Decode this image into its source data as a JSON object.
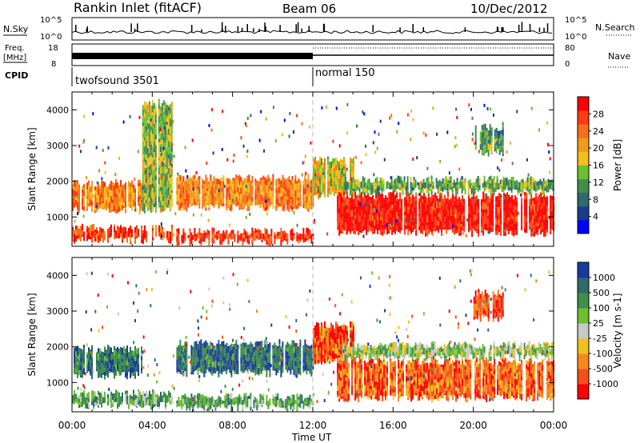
{
  "header": {
    "station": "Rankin Inlet (fitACF)",
    "beam": "Beam 06",
    "date": "10/Dec/2012"
  },
  "top_panels": {
    "nsky_label": "N.Sky",
    "nsearch_label": "N.Search",
    "nsky_ticks": [
      "10^5",
      "10^0"
    ],
    "nsearch_ticks": [
      "10^5",
      "10^0"
    ],
    "freq_label": [
      "Freq.",
      "[MHz]"
    ],
    "freq_ticks": [
      "18",
      "8"
    ],
    "nave_label": "Nave",
    "nave_ticks": [
      "80",
      "0"
    ],
    "cpid_label": "CPID",
    "cpid_segments": [
      {
        "start": 0,
        "end": 12,
        "label": "twofsound 3501"
      },
      {
        "start": 12,
        "end": 24,
        "label": "normal 150"
      }
    ]
  },
  "chart_data": [
    {
      "type": "heatmap",
      "title": "",
      "xlabel": "Time UT",
      "ylabel": "Slant Range [km]",
      "xlim": [
        0,
        24
      ],
      "ylim": [
        180,
        4500
      ],
      "x_ticks": [
        "00:00",
        "04:00",
        "08:00",
        "12:00",
        "16:00",
        "20:00",
        "00:00"
      ],
      "y_ticks": [
        1000,
        2000,
        3000,
        4000
      ],
      "colorbar": {
        "label": "Power [dB]",
        "ticks": [
          "4",
          "8",
          "12",
          "16",
          "20",
          "24",
          "28"
        ],
        "colors": [
          "#0000ff",
          "#1a3a8f",
          "#2e6b6b",
          "#3e8f4a",
          "#6cbf2f",
          "#f2c01a",
          "#f29a1a",
          "#f5701a",
          "#ff3b10",
          "#ff0000"
        ]
      },
      "bands": [
        {
          "t_start": 0.0,
          "t_end": 3.5,
          "r_min": 1200,
          "r_max": 1950,
          "level": 0.72
        },
        {
          "t_start": 0.0,
          "t_end": 5.0,
          "r_min": 350,
          "r_max": 700,
          "level": 0.85
        },
        {
          "t_start": 5.2,
          "t_end": 12.0,
          "r_min": 1250,
          "r_max": 2100,
          "level": 0.7
        },
        {
          "t_start": 5.2,
          "t_end": 12.0,
          "r_min": 300,
          "r_max": 600,
          "level": 0.88
        },
        {
          "t_start": 12.0,
          "t_end": 14.0,
          "r_min": 1600,
          "r_max": 2600,
          "level": 0.55
        },
        {
          "t_start": 13.2,
          "t_end": 24.0,
          "r_min": 550,
          "r_max": 1600,
          "level": 0.95
        },
        {
          "t_start": 13.5,
          "t_end": 24.0,
          "r_min": 1700,
          "r_max": 2050,
          "level": 0.4
        },
        {
          "t_start": 3.5,
          "t_end": 5.0,
          "r_min": 1200,
          "r_max": 4200,
          "level": 0.45
        },
        {
          "t_start": 20.0,
          "t_end": 21.5,
          "r_min": 2800,
          "r_max": 3500,
          "level": 0.35
        }
      ]
    },
    {
      "type": "heatmap",
      "title": "",
      "xlabel": "Time UT",
      "ylabel": "Slant Range [km]",
      "xlim": [
        0,
        24
      ],
      "ylim": [
        180,
        4500
      ],
      "x_ticks": [
        "00:00",
        "04:00",
        "08:00",
        "12:00",
        "16:00",
        "20:00",
        "00:00"
      ],
      "y_ticks": [
        1000,
        2000,
        3000,
        4000
      ],
      "colorbar": {
        "label": "Velocity [m s-1]",
        "ticks": [
          "1000",
          "500",
          "100",
          "25",
          "-25",
          "-100",
          "-500",
          "-1000"
        ],
        "colors": [
          "#1a3a9f",
          "#2e6b6b",
          "#3e8f4a",
          "#6cbf2f",
          "#c8c8c8",
          "#f2c01a",
          "#f58a1a",
          "#f5501a",
          "#ff0000"
        ]
      },
      "bands": [
        {
          "t_start": 0.0,
          "t_end": 3.5,
          "r_min": 1200,
          "r_max": 1950,
          "level": 0.2
        },
        {
          "t_start": 0.0,
          "t_end": 5.0,
          "r_min": 350,
          "r_max": 700,
          "level": 0.35
        },
        {
          "t_start": 5.2,
          "t_end": 12.0,
          "r_min": 1250,
          "r_max": 2100,
          "level": 0.18
        },
        {
          "t_start": 5.2,
          "t_end": 12.0,
          "r_min": 300,
          "r_max": 600,
          "level": 0.3
        },
        {
          "t_start": 12.0,
          "t_end": 14.0,
          "r_min": 1600,
          "r_max": 2600,
          "level": 0.82
        },
        {
          "t_start": 13.2,
          "t_end": 24.0,
          "r_min": 550,
          "r_max": 1600,
          "level": 0.8
        },
        {
          "t_start": 13.5,
          "t_end": 24.0,
          "r_min": 1700,
          "r_max": 2050,
          "level": 0.45
        },
        {
          "t_start": 20.0,
          "t_end": 21.5,
          "r_min": 2800,
          "r_max": 3500,
          "level": 0.85
        }
      ]
    }
  ]
}
